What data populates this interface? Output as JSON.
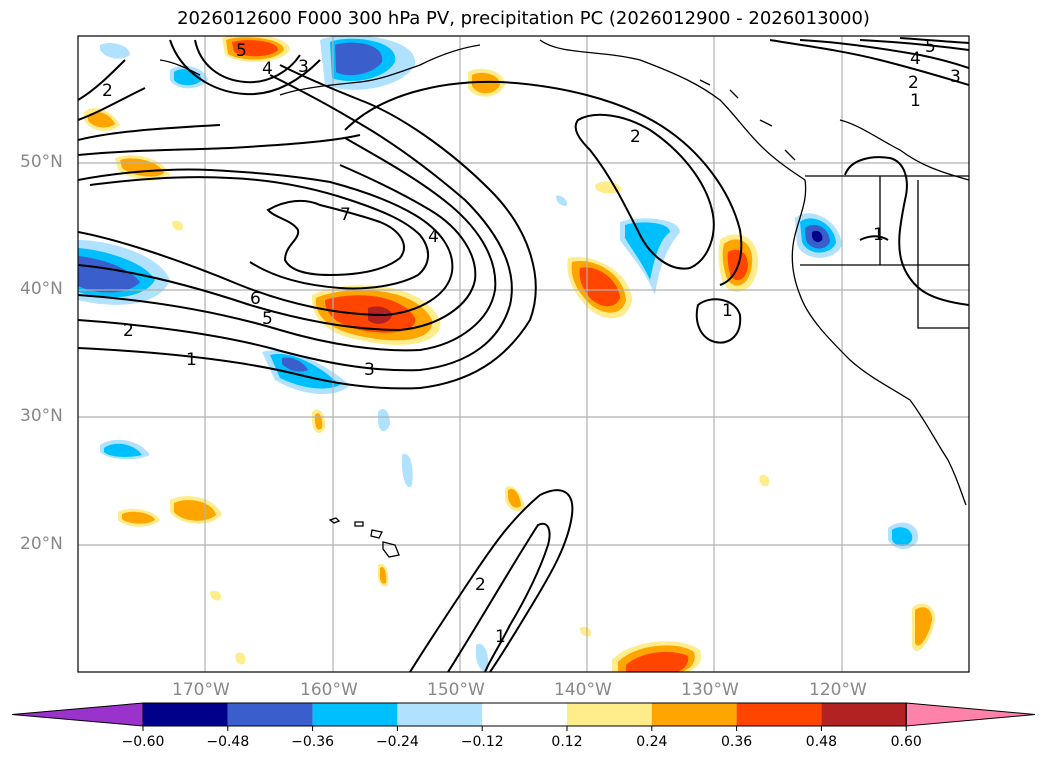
{
  "title": "2026012600 F000 300 hPa PV, precipitation PC (2026012900 - 2026013000)",
  "map": {
    "lat_labels": [
      "50°N",
      "40°N",
      "30°N",
      "20°N"
    ],
    "lon_labels": [
      "170°W",
      "160°W",
      "150°W",
      "140°W",
      "130°W",
      "120°W"
    ],
    "contour_labels": [
      "1",
      "2",
      "3",
      "4",
      "5",
      "6",
      "7"
    ]
  },
  "colorbar": {
    "tick_labels": [
      "−0.60",
      "−0.48",
      "−0.36",
      "−0.24",
      "−0.12",
      "0.12",
      "0.24",
      "0.36",
      "0.48",
      "0.60"
    ],
    "colors": [
      "#9933cc",
      "#00008b",
      "#3a5fcd",
      "#00bfff",
      "#b0e2ff",
      "#ffffff",
      "#ffec8b",
      "#ffa500",
      "#ff4500",
      "#b22222",
      "#ff82ab"
    ]
  }
}
